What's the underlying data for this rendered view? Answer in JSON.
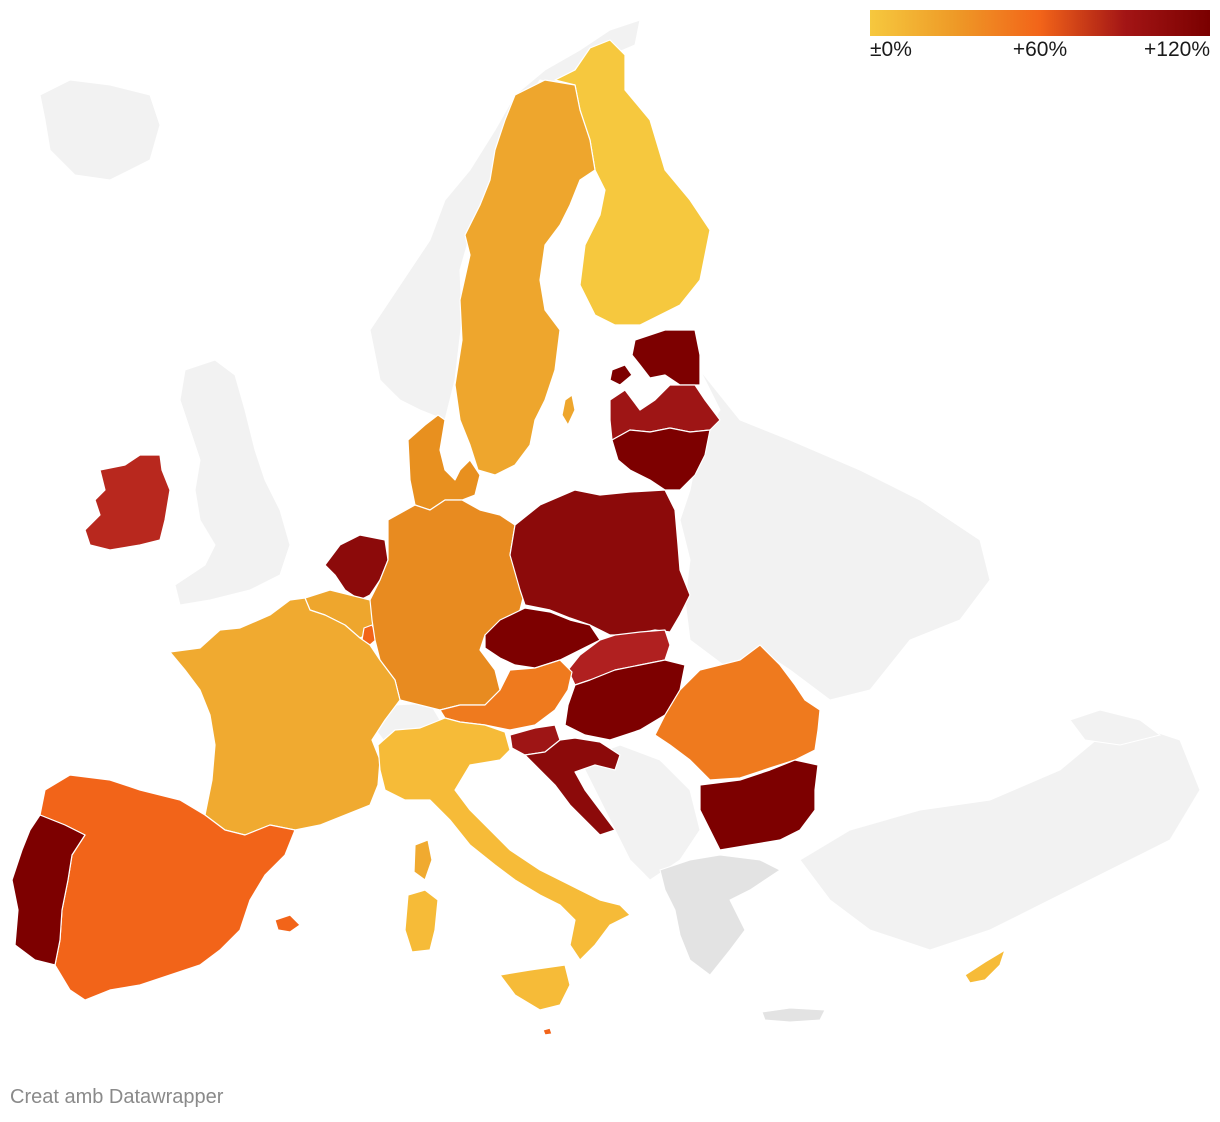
{
  "legend": {
    "min_label": "±0%",
    "mid_label": "+60%",
    "max_label": "+120%",
    "colors": [
      "#f6c83e",
      "#ee9a27",
      "#f26419",
      "#a31515",
      "#7a0000"
    ]
  },
  "credit": "Creat amb Datawrapper",
  "map_data": {
    "type": "choropleth",
    "scale": {
      "min": 0,
      "mid": 60,
      "max": 120,
      "unit": "%"
    },
    "regions": [
      {
        "id": "finland",
        "color": "#f6c83e"
      },
      {
        "id": "sweden",
        "color": "#eea62d"
      },
      {
        "id": "estonia",
        "color": "#7d0000"
      },
      {
        "id": "latvia",
        "color": "#9e1515"
      },
      {
        "id": "lithuania",
        "color": "#7d0000"
      },
      {
        "id": "ireland",
        "color": "#b8281e"
      },
      {
        "id": "denmark",
        "color": "#e8901f"
      },
      {
        "id": "netherlands",
        "color": "#8c0a0a"
      },
      {
        "id": "belgium",
        "color": "#eea62d"
      },
      {
        "id": "luxembourg",
        "color": "#f26419"
      },
      {
        "id": "germany",
        "color": "#e88b20"
      },
      {
        "id": "poland",
        "color": "#8c0a0a"
      },
      {
        "id": "czechia",
        "color": "#7d0000"
      },
      {
        "id": "slovakia",
        "color": "#b02020"
      },
      {
        "id": "austria",
        "color": "#ef7a1e"
      },
      {
        "id": "hungary",
        "color": "#7d0000"
      },
      {
        "id": "slovenia",
        "color": "#9e1515"
      },
      {
        "id": "croatia",
        "color": "#8c0a0a"
      },
      {
        "id": "romania",
        "color": "#ef7a1e"
      },
      {
        "id": "bulgaria",
        "color": "#7d0000"
      },
      {
        "id": "france",
        "color": "#f0aa30"
      },
      {
        "id": "italy",
        "color": "#f6bb38"
      },
      {
        "id": "spain",
        "color": "#f26419"
      },
      {
        "id": "portugal",
        "color": "#7d0000"
      },
      {
        "id": "malta",
        "color": "#f26419"
      },
      {
        "id": "cyprus",
        "color": "#f6bb38"
      },
      {
        "id": "greece",
        "color": "#e3e3e3"
      }
    ]
  }
}
